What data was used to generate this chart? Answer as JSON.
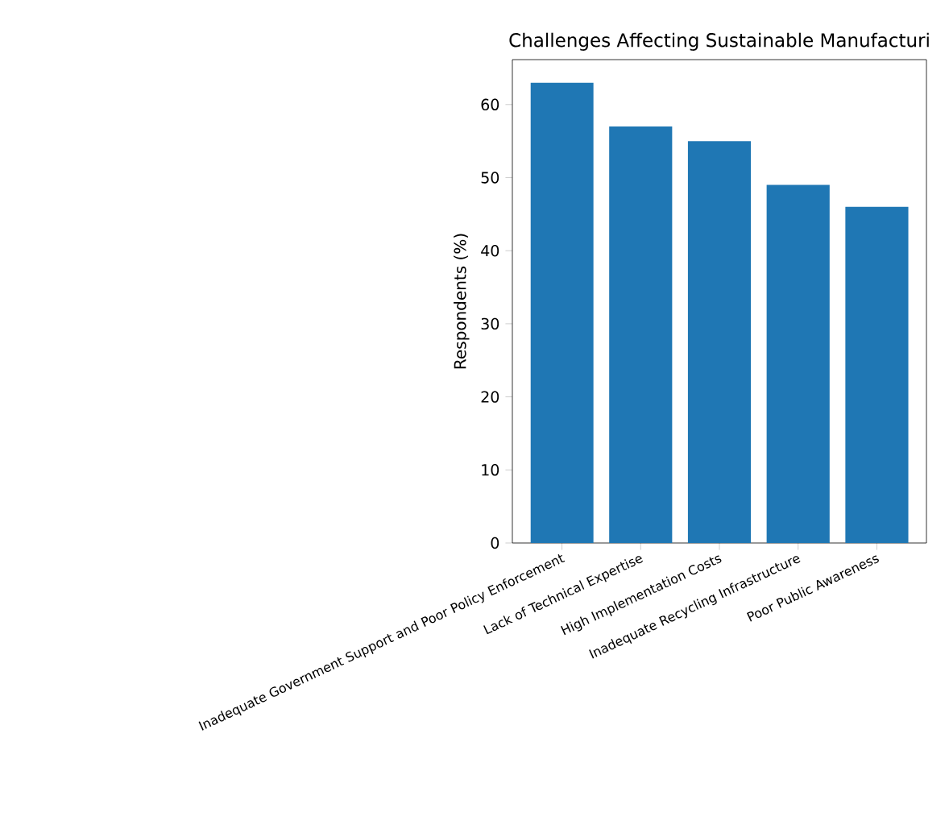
{
  "chart_data": {
    "type": "bar",
    "title": "Challenges Affecting Sustainable Manufacturi",
    "ylabel": "Respondents (%)",
    "categories": [
      "Inadequate Government Support and Poor Policy Enforcement",
      "Lack of Technical Expertise",
      "High Implementation Costs",
      "Inadequate Recycling Infrastructure",
      "Poor Public Awareness"
    ],
    "values": [
      63,
      57,
      55,
      49,
      46
    ],
    "color": "#1f77b4",
    "ylim": [
      0,
      66.15
    ],
    "yticks": [
      0,
      10,
      20,
      30,
      40,
      50,
      60
    ]
  }
}
